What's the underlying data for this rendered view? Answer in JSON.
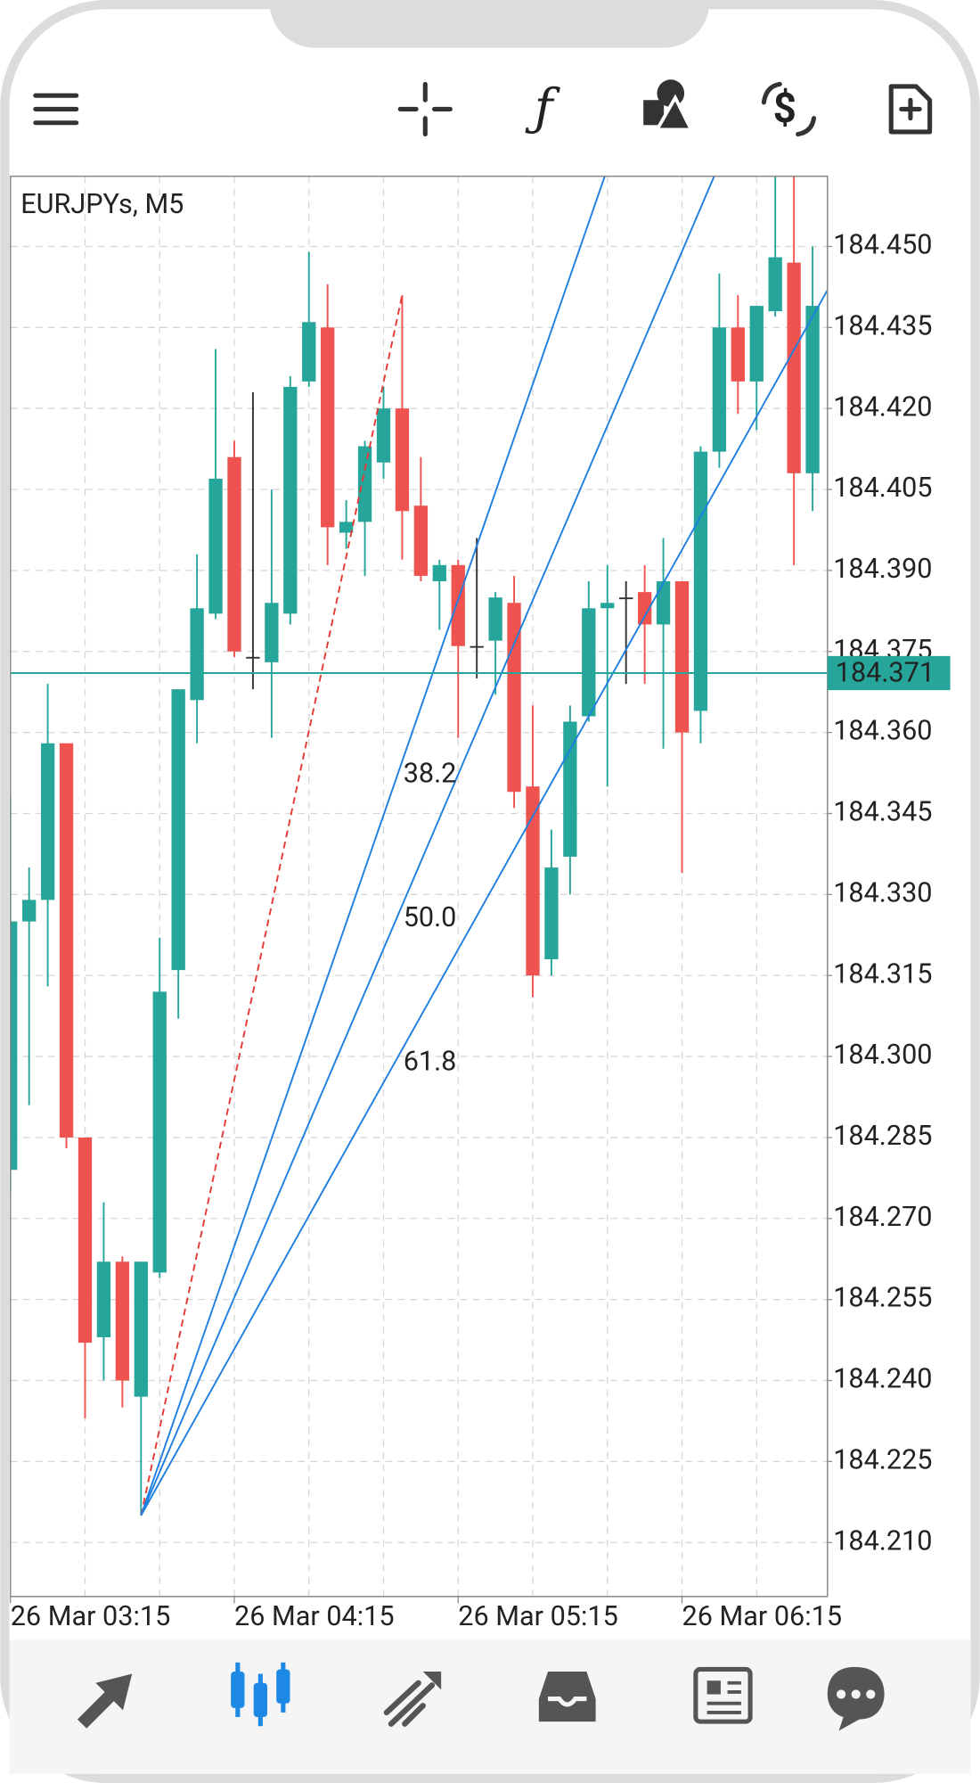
{
  "chart_data": {
    "type": "candlestick",
    "title": "EURJPYs, M5",
    "open": [
      184.279,
      184.325,
      184.329,
      184.358,
      184.285,
      184.248,
      184.262,
      184.237,
      184.26,
      184.316,
      184.366,
      184.382,
      184.411,
      184.374,
      184.373,
      184.382,
      184.425,
      184.435,
      184.397,
      184.399,
      184.41,
      184.42,
      184.402,
      184.388,
      184.391,
      184.376,
      184.377,
      184.384,
      184.35,
      184.318,
      184.337,
      184.363,
      184.383,
      184.385,
      184.386,
      184.38,
      184.388,
      184.364,
      184.412,
      184.435,
      184.425,
      184.438,
      184.447,
      184.408
    ],
    "high": [
      184.348,
      184.335,
      184.369,
      184.358,
      184.285,
      184.273,
      184.263,
      184.262,
      184.322,
      184.368,
      184.393,
      184.431,
      184.414,
      184.423,
      184.405,
      184.426,
      184.449,
      184.443,
      184.403,
      184.414,
      184.424,
      184.441,
      184.411,
      184.392,
      184.392,
      184.396,
      184.386,
      184.389,
      184.365,
      184.342,
      184.365,
      184.388,
      184.391,
      184.388,
      184.391,
      184.396,
      184.388,
      184.413,
      184.445,
      184.441,
      184.439,
      184.463,
      184.463,
      184.45
    ],
    "low": [
      184.275,
      184.291,
      184.313,
      184.283,
      184.233,
      184.24,
      184.235,
      184.215,
      184.259,
      184.307,
      184.358,
      184.381,
      184.374,
      184.368,
      184.359,
      184.38,
      184.424,
      184.391,
      184.394,
      184.389,
      184.407,
      184.392,
      184.388,
      184.379,
      184.359,
      184.37,
      184.367,
      184.346,
      184.311,
      184.315,
      184.33,
      184.362,
      184.35,
      184.369,
      184.369,
      184.357,
      184.334,
      184.358,
      184.409,
      184.419,
      184.416,
      184.437,
      184.391,
      184.401
    ],
    "close": [
      184.325,
      184.329,
      184.358,
      184.285,
      184.247,
      184.262,
      184.24,
      184.262,
      184.312,
      184.368,
      184.383,
      184.407,
      184.375,
      184.374,
      184.384,
      184.424,
      184.436,
      184.398,
      184.399,
      184.413,
      184.42,
      184.401,
      184.389,
      184.391,
      184.376,
      184.376,
      184.385,
      184.349,
      184.315,
      184.335,
      184.362,
      184.383,
      184.384,
      184.385,
      184.38,
      184.388,
      184.36,
      184.412,
      184.435,
      184.425,
      184.439,
      184.448,
      184.408,
      184.439
    ],
    "up_color": "#26a69a",
    "down_color": "#ef5350",
    "doji_color": "#333333",
    "ylim": [
      184.2,
      184.463
    ],
    "yticks": [
      {
        "value": 184.45,
        "label": "184.450"
      },
      184.435,
      {
        "value": 184.42,
        "label": "184.420"
      },
      184.405,
      {
        "value": 184.39,
        "label": "184.390"
      },
      184.375,
      {
        "value": 184.36,
        "label": "184.360"
      },
      184.345,
      {
        "value": 184.33,
        "label": "184.330"
      },
      184.315,
      {
        "value": 184.3,
        "label": "184.300"
      },
      184.285,
      {
        "value": 184.27,
        "label": "184.270"
      },
      184.255,
      {
        "value": 184.24,
        "label": "184.240"
      },
      184.225,
      {
        "value": 184.21,
        "label": "184.210"
      }
    ],
    "xlim": [
      0,
      43.8
    ],
    "xticks": [
      {
        "value": 0,
        "label": "26 Mar 03:15"
      },
      {
        "value": 12,
        "label": "26 Mar 04:15"
      },
      {
        "value": 24,
        "label": "26 Mar 05:15"
      },
      {
        "value": 36,
        "label": "26 Mar 06:15"
      }
    ],
    "xgrid": [
      4,
      8,
      12,
      16,
      20,
      24,
      28,
      32,
      36,
      40
    ],
    "grid": true,
    "current_price": 184.371,
    "current_price_color": "#26a69a",
    "fibonacci_fan": {
      "start_index": 7,
      "start_price": 184.215,
      "end_index": 21,
      "end_price": 184.441,
      "levels": [
        38.2,
        {
          "value": 50,
          "label": "50.0"
        },
        61.8
      ],
      "color": "#1e7fe0",
      "label_color": "#3a8ee0",
      "trend_color": "#e53935"
    }
  }
}
